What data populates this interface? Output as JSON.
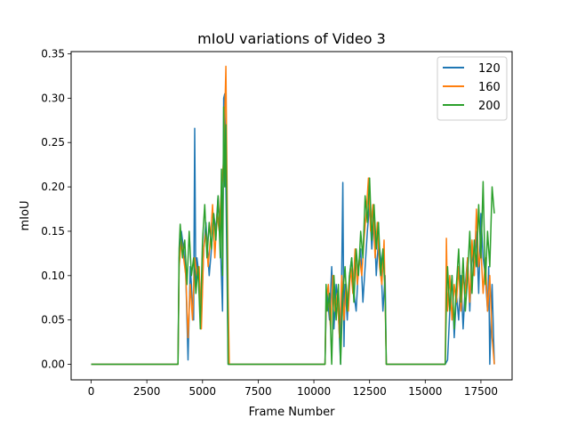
{
  "chart_data": {
    "type": "line",
    "title": "mIoU variations of Video 3",
    "xlabel": "Frame Number",
    "ylabel": "mIoU",
    "xlim": [
      -900,
      18900
    ],
    "ylim": [
      -0.0175,
      0.3525
    ],
    "xticks": [
      0,
      2500,
      5000,
      7500,
      10000,
      12500,
      15000,
      17500
    ],
    "xtick_labels": [
      "0",
      "2500",
      "5000",
      "7500",
      "10000",
      "12500",
      "15000",
      "17500"
    ],
    "yticks": [
      0.0,
      0.05,
      0.1,
      0.15,
      0.2,
      0.25,
      0.3,
      0.35
    ],
    "ytick_labels": [
      "0.00",
      "0.05",
      "0.10",
      "0.15",
      "0.20",
      "0.25",
      "0.30",
      "0.35"
    ],
    "grid": false,
    "legend_position": "top-right",
    "series": [
      {
        "name": "120",
        "color": "#1f77b4",
        "x": [
          0,
          3900,
          3950,
          4050,
          4150,
          4250,
          4350,
          4400,
          4450,
          4500,
          4550,
          4600,
          4650,
          4700,
          4750,
          4850,
          4950,
          5000,
          5050,
          5150,
          5200,
          5300,
          5400,
          5500,
          5600,
          5700,
          5800,
          5900,
          5950,
          6000,
          6050,
          6100,
          6150,
          6200,
          10500,
          10550,
          10600,
          10700,
          10800,
          10900,
          11000,
          11100,
          11200,
          11300,
          11350,
          11400,
          11500,
          11600,
          11700,
          11800,
          11900,
          12000,
          12100,
          12200,
          12300,
          12400,
          12500,
          12600,
          12700,
          12800,
          12900,
          13000,
          13100,
          13200,
          13250,
          15900,
          16000,
          16100,
          16200,
          16300,
          16400,
          16500,
          16600,
          16700,
          16800,
          16900,
          17000,
          17100,
          17200,
          17300,
          17400,
          17500,
          17600,
          17700,
          17800,
          17850,
          17900,
          18000,
          18100
        ],
        "y": [
          0,
          0,
          0.12,
          0.15,
          0.13,
          0.1,
          0.005,
          0.06,
          0.11,
          0.09,
          0.06,
          0.05,
          0.266,
          0.08,
          0.12,
          0.1,
          0.05,
          0.09,
          0.13,
          0.16,
          0.14,
          0.1,
          0.13,
          0.17,
          0.15,
          0.19,
          0.14,
          0.06,
          0.3,
          0.305,
          0.2,
          0.1,
          0.0,
          0.0,
          0.0,
          0.06,
          0.08,
          0.05,
          0.11,
          0.04,
          0.09,
          0.06,
          0.0,
          0.205,
          0.02,
          0.09,
          0.05,
          0.1,
          0.12,
          0.08,
          0.06,
          0.11,
          0.13,
          0.07,
          0.11,
          0.15,
          0.18,
          0.13,
          0.17,
          0.1,
          0.14,
          0.12,
          0.06,
          0.1,
          0.0,
          0.0,
          0.005,
          0.06,
          0.1,
          0.03,
          0.08,
          0.05,
          0.1,
          0.04,
          0.09,
          0.12,
          0.06,
          0.13,
          0.1,
          0.15,
          0.08,
          0.17,
          0.12,
          0.1,
          0.06,
          0.11,
          0.0,
          0.09,
          0.0
        ]
      },
      {
        "name": "160",
        "color": "#ff7f0e",
        "x": [
          0,
          3900,
          3950,
          4050,
          4150,
          4250,
          4350,
          4450,
          4550,
          4650,
          4750,
          4850,
          4950,
          5050,
          5150,
          5250,
          5350,
          5450,
          5550,
          5650,
          5750,
          5850,
          5950,
          6050,
          6100,
          6150,
          6200,
          10500,
          10550,
          10650,
          10750,
          10850,
          10950,
          11050,
          11150,
          11250,
          11350,
          11450,
          11550,
          11650,
          11750,
          11850,
          11950,
          12050,
          12150,
          12250,
          12350,
          12450,
          12550,
          12650,
          12750,
          12850,
          12950,
          13050,
          13150,
          13250,
          15900,
          15950,
          16000,
          16100,
          16200,
          16300,
          16400,
          16500,
          16600,
          16700,
          16800,
          16900,
          17000,
          17100,
          17200,
          17300,
          17400,
          17500,
          17600,
          17700,
          17800,
          17900,
          18000,
          18100
        ],
        "y": [
          0,
          0,
          0.11,
          0.14,
          0.12,
          0.1,
          0.03,
          0.09,
          0.05,
          0.12,
          0.1,
          0.11,
          0.04,
          0.13,
          0.15,
          0.11,
          0.14,
          0.18,
          0.12,
          0.17,
          0.15,
          0.2,
          0.23,
          0.336,
          0.2,
          0.08,
          0.0,
          0.0,
          0.07,
          0.09,
          0.04,
          0.1,
          0.06,
          0.08,
          0.03,
          0.1,
          0.05,
          0.09,
          0.06,
          0.11,
          0.08,
          0.13,
          0.09,
          0.12,
          0.1,
          0.14,
          0.17,
          0.21,
          0.15,
          0.18,
          0.12,
          0.16,
          0.11,
          0.09,
          0.14,
          0.0,
          0.0,
          0.142,
          0.06,
          0.1,
          0.05,
          0.09,
          0.07,
          0.11,
          0.06,
          0.1,
          0.08,
          0.12,
          0.07,
          0.14,
          0.1,
          0.175,
          0.11,
          0.13,
          0.08,
          0.12,
          0.06,
          0.1,
          0.03,
          0.0
        ]
      },
      {
        "name": "200",
        "color": "#2ca02c",
        "x": [
          0,
          3900,
          3950,
          4000,
          4100,
          4200,
          4300,
          4400,
          4500,
          4600,
          4700,
          4800,
          4900,
          5000,
          5100,
          5200,
          5300,
          5400,
          5500,
          5600,
          5700,
          5800,
          5850,
          5900,
          5950,
          6000,
          6050,
          6100,
          6150,
          6200,
          10500,
          10550,
          10600,
          10700,
          10800,
          10900,
          11000,
          11100,
          11200,
          11300,
          11400,
          11500,
          11600,
          11700,
          11800,
          11900,
          12000,
          12100,
          12200,
          12300,
          12400,
          12500,
          12600,
          12700,
          12800,
          12900,
          13000,
          13100,
          13200,
          13250,
          15900,
          15950,
          16000,
          16100,
          16200,
          16300,
          16400,
          16500,
          16600,
          16700,
          16800,
          16900,
          17000,
          17100,
          17200,
          17300,
          17400,
          17500,
          17600,
          17700,
          17800,
          17900,
          18000,
          18100
        ],
        "y": [
          0,
          0,
          0.13,
          0.158,
          0.12,
          0.14,
          0.09,
          0.15,
          0.1,
          0.12,
          0.08,
          0.11,
          0.04,
          0.14,
          0.18,
          0.12,
          0.16,
          0.13,
          0.17,
          0.14,
          0.19,
          0.12,
          0.22,
          0.1,
          0.29,
          0.2,
          0.27,
          0.15,
          0.0,
          0.0,
          0.0,
          0.09,
          0.06,
          0.08,
          0.0,
          0.1,
          0.05,
          0.09,
          0.0,
          0.08,
          0.11,
          0.06,
          0.1,
          0.12,
          0.07,
          0.13,
          0.1,
          0.15,
          0.12,
          0.19,
          0.16,
          0.21,
          0.14,
          0.18,
          0.13,
          0.16,
          0.1,
          0.13,
          0.08,
          0.0,
          0.0,
          0.07,
          0.11,
          0.06,
          0.1,
          0.04,
          0.09,
          0.13,
          0.07,
          0.12,
          0.06,
          0.1,
          0.15,
          0.08,
          0.14,
          0.11,
          0.18,
          0.12,
          0.206,
          0.09,
          0.15,
          0.11,
          0.2,
          0.17
        ]
      }
    ]
  }
}
